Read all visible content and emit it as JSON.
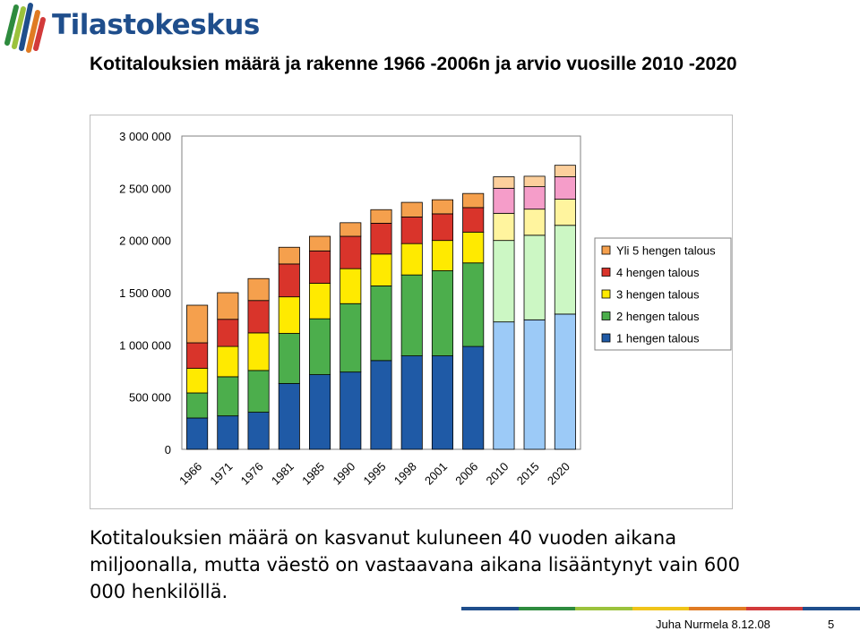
{
  "header": {
    "logo_text": "Tilastokeskus"
  },
  "slide": {
    "title": "Kotitalouksien määrä ja rakenne  1966 -2006n ja arvio vuosille 2010 -2020",
    "body_text": "Kotitalouksien määrä on kasvanut kuluneen 40 vuoden aikana miljoonalla, mutta väestö on vastaavana aikana lisääntynyt vain 600 000 henkilöllä."
  },
  "footer": {
    "author_date": "Juha Nurmela 8.12.08",
    "page_number": "5"
  },
  "colors": {
    "logo_blue": "#1f4e8c",
    "footer_bar": [
      "#1f4e8c",
      "#2e8b3e",
      "#9bc23c",
      "#f0c419",
      "#e07b23",
      "#d23a3a",
      "#1f4e8c"
    ]
  },
  "chart_data": {
    "type": "bar",
    "stacked": true,
    "categories": [
      "1966",
      "1971",
      "1976",
      "1981",
      "1985",
      "1990",
      "1995",
      "1998",
      "2001",
      "2006",
      "2010",
      "2015",
      "2020"
    ],
    "ylim": [
      0,
      3000000
    ],
    "yticks": [
      0,
      500000,
      1000000,
      1500000,
      2000000,
      2500000,
      3000000
    ],
    "ytick_labels": [
      "0",
      "500 000",
      "1 000 000",
      "1 500 000",
      "2 000 000",
      "2 500 000",
      "3 000 000"
    ],
    "gridlines": false,
    "plot_background": "#ffffff",
    "legend_position": "right",
    "projection_categories": [
      "2010",
      "2015",
      "2020"
    ],
    "series": [
      {
        "name": "1 hengen talous",
        "color": "#1f5aa6",
        "projected_color": "#9ccaf7",
        "values": [
          300000,
          320000,
          355000,
          630000,
          715000,
          740000,
          850000,
          895000,
          895000,
          985000,
          1220000,
          1240000,
          1295000
        ]
      },
      {
        "name": "2 hengen talous",
        "color": "#4cae4c",
        "projected_color": "#ccf7c4",
        "values": [
          240000,
          375000,
          400000,
          480000,
          535000,
          655000,
          715000,
          775000,
          815000,
          800000,
          780000,
          810000,
          850000
        ]
      },
      {
        "name": "3 hengen talous",
        "color": "#ffea00",
        "projected_color": "#fff49e",
        "values": [
          235000,
          290000,
          360000,
          350000,
          340000,
          335000,
          305000,
          300000,
          290000,
          295000,
          260000,
          250000,
          250000
        ]
      },
      {
        "name": "4 hengen talous",
        "color": "#d9342b",
        "projected_color": "#f59dc9",
        "values": [
          245000,
          260000,
          310000,
          315000,
          310000,
          310000,
          295000,
          255000,
          255000,
          235000,
          240000,
          215000,
          215000
        ]
      },
      {
        "name": "Yli 5 hengen talous",
        "color": "#f5a04d",
        "projected_color": "#fccf9c",
        "values": [
          360000,
          255000,
          210000,
          160000,
          140000,
          130000,
          130000,
          140000,
          135000,
          135000,
          110000,
          100000,
          110000
        ]
      }
    ]
  }
}
